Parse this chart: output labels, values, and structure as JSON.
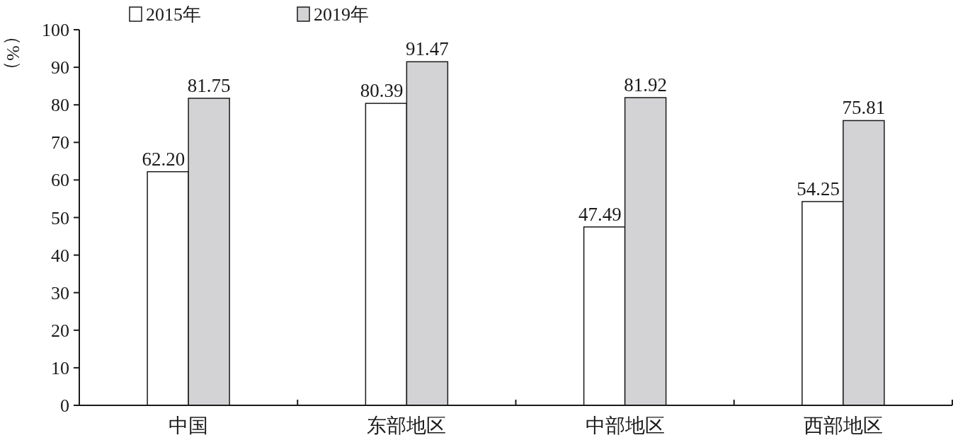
{
  "chart_data": {
    "type": "bar",
    "ylabel": "（%）",
    "categories": [
      "中国",
      "东部地区",
      "中部地区",
      "西部地区"
    ],
    "series": [
      {
        "name": "2015年",
        "color": "#ffffff",
        "values": [
          62.2,
          80.39,
          47.49,
          54.25
        ],
        "value_labels": [
          "62.20",
          "80.39",
          "47.49",
          "54.25"
        ]
      },
      {
        "name": "2019年",
        "color": "#d3d3d6",
        "values": [
          81.75,
          91.47,
          81.92,
          75.81
        ],
        "value_labels": [
          "81.75",
          "91.47",
          "81.92",
          "75.81"
        ]
      }
    ],
    "ylim": [
      0,
      100
    ],
    "yticks": [
      0,
      10,
      20,
      30,
      40,
      50,
      60,
      70,
      80,
      90,
      100
    ],
    "legend": "top left",
    "grid": false
  }
}
